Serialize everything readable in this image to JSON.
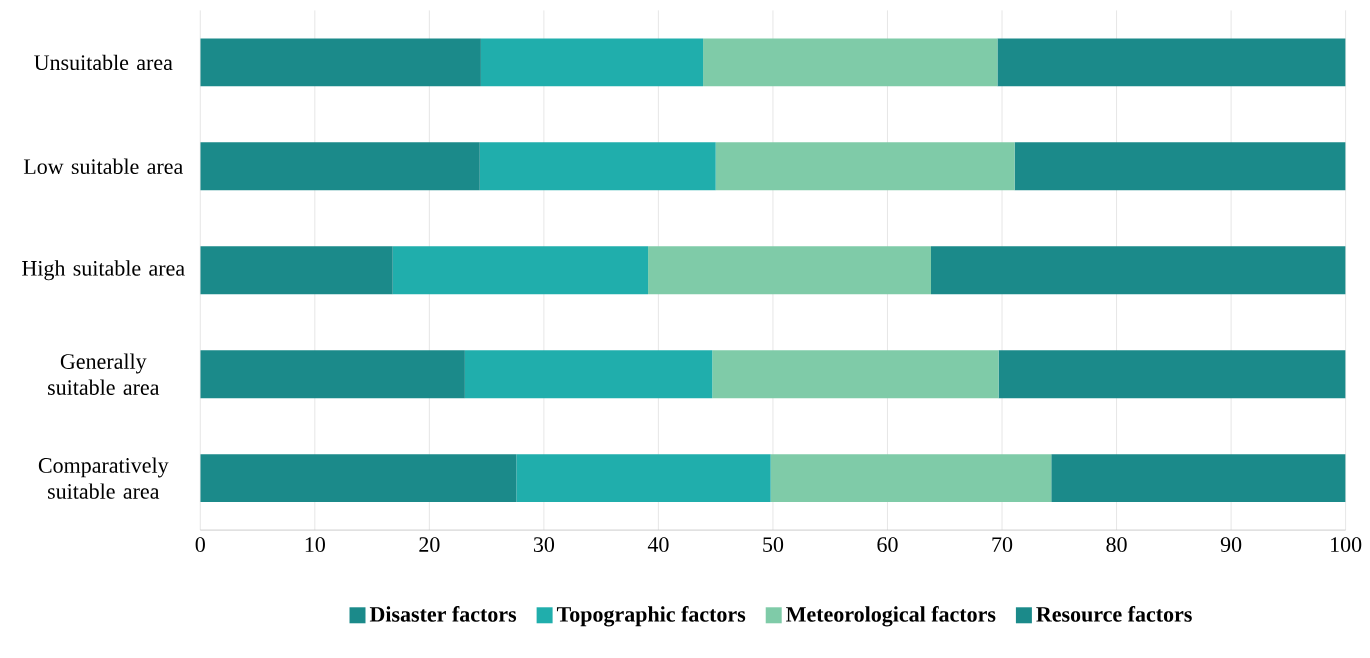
{
  "chart_data": {
    "type": "bar",
    "orientation": "horizontal",
    "stacked": true,
    "categories": [
      "Unsuitable area",
      "Low suitable area",
      "High suitable area",
      "Generally suitable area",
      "Comparatively suitable area"
    ],
    "series": [
      {
        "name": "Disaster factors",
        "color": "#1b8a8a",
        "values": [
          24.5,
          24.4,
          16.8,
          23.1,
          27.6
        ]
      },
      {
        "name": "Topographic factors",
        "color": "#20aeac",
        "values": [
          19.4,
          20.6,
          22.3,
          21.6,
          22.2
        ]
      },
      {
        "name": "Meteorological factors",
        "color": "#7fcba8",
        "values": [
          25.7,
          26.1,
          24.7,
          25.0,
          24.5
        ]
      },
      {
        "name": "Resource factors",
        "color": "#1b8a8a",
        "values": [
          30.4,
          28.9,
          36.2,
          30.3,
          25.7
        ]
      }
    ],
    "xlim": [
      0,
      100
    ],
    "xticks": [
      0,
      10,
      20,
      30,
      40,
      50,
      60,
      70,
      80,
      90,
      100
    ],
    "grid": "x",
    "legend": "bottom"
  }
}
